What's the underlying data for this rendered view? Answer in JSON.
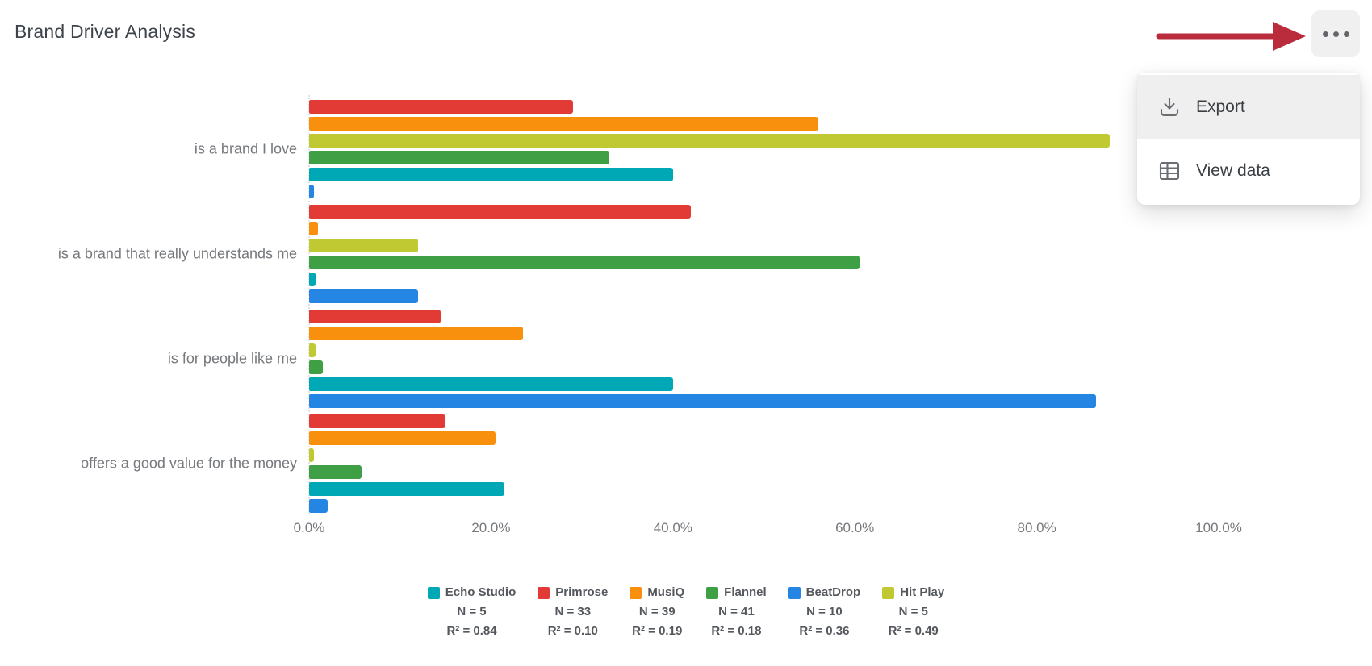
{
  "title": "Brand Driver Analysis",
  "toolbar": {
    "more_button_icon": "ellipsis-icon"
  },
  "annotation": {
    "arrow_color": "#ba2c3c",
    "arrow_points_to": "more-options-button"
  },
  "menu": {
    "items": [
      {
        "label": "Export",
        "icon": "download-icon",
        "highlighted": true
      },
      {
        "label": "View data",
        "icon": "table-icon",
        "highlighted": false
      }
    ]
  },
  "chart_data": {
    "type": "bar",
    "orientation": "horizontal",
    "title": "Brand Driver Analysis",
    "categories": [
      "is a brand I love",
      "is a brand that really understands me",
      "is for people like me",
      "offers a good value for the money"
    ],
    "series": [
      {
        "name": "Primrose",
        "color": "#e23b35",
        "values": [
          29,
          42,
          14.5,
          15
        ]
      },
      {
        "name": "MusiQ",
        "color": "#f8900e",
        "values": [
          56,
          1,
          23.5,
          20.5
        ]
      },
      {
        "name": "Hit Play",
        "color": "#c0c931",
        "values": [
          88,
          12,
          0.7,
          0.5
        ]
      },
      {
        "name": "Flannel",
        "color": "#3f9f44",
        "values": [
          33,
          60.5,
          1.5,
          5.8
        ]
      },
      {
        "name": "Echo Studio",
        "color": "#00a7b5",
        "values": [
          40,
          0.7,
          40,
          21.5
        ]
      },
      {
        "name": "BeatDrop",
        "color": "#2585e2",
        "values": [
          0.5,
          12,
          86.5,
          2
        ]
      }
    ],
    "x_ticks": [
      "0.0%",
      "20.0%",
      "40.0%",
      "60.0%",
      "80.0%",
      "100.0%"
    ],
    "xlim": [
      0,
      100
    ],
    "grid": false,
    "legend_position": "bottom",
    "legend": [
      {
        "name": "Echo Studio",
        "color": "#00a7b5",
        "n_text": "N = 5",
        "r2_text": "R² = 0.84"
      },
      {
        "name": "Primrose",
        "color": "#e23b35",
        "n_text": "N = 33",
        "r2_text": "R² = 0.10"
      },
      {
        "name": "MusiQ",
        "color": "#f8900e",
        "n_text": "N = 39",
        "r2_text": "R² = 0.19"
      },
      {
        "name": "Flannel",
        "color": "#3f9f44",
        "n_text": "N = 41",
        "r2_text": "R² = 0.18"
      },
      {
        "name": "BeatDrop",
        "color": "#2585e2",
        "n_text": "N = 10",
        "r2_text": "R² = 0.36"
      },
      {
        "name": "Hit Play",
        "color": "#c0c931",
        "n_text": "N = 5",
        "r2_text": "R² = 0.49"
      }
    ]
  }
}
